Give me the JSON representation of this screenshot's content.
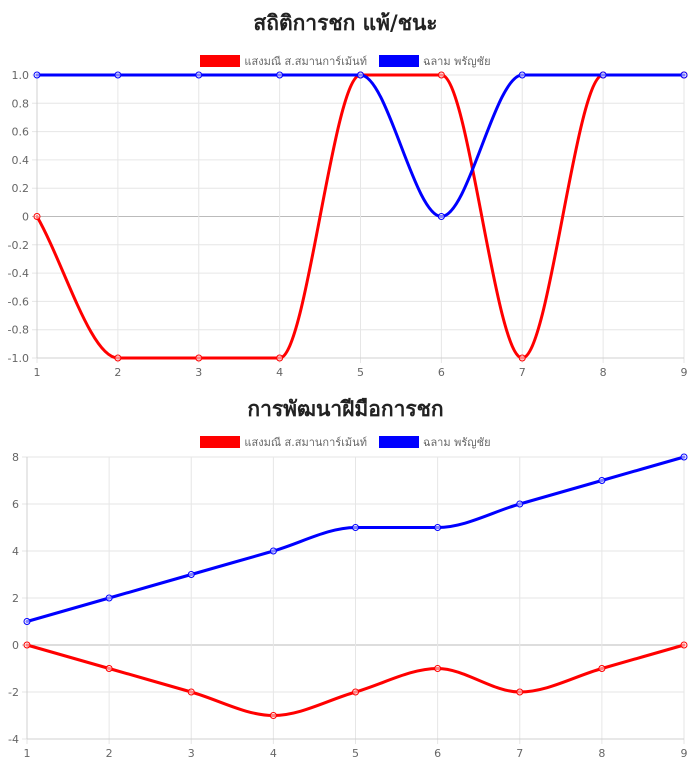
{
  "chart_data": [
    {
      "type": "line",
      "title": "สถิติการชก แพ้/ชนะ",
      "x": [
        1,
        2,
        3,
        4,
        5,
        6,
        7,
        8,
        9
      ],
      "ylim": [
        -1.0,
        1.0
      ],
      "yticks": [
        "1.0",
        "0.8",
        "0.6",
        "0.4",
        "0.2",
        "0",
        "-0.2",
        "-0.4",
        "-0.6",
        "-0.8",
        "-1.0"
      ],
      "grid": true,
      "legend_position": "top",
      "series": [
        {
          "name": "แสงมณี ส.สมานการ์เม้นท์",
          "color": "#ff0000",
          "values": [
            0,
            -1,
            -1,
            -1,
            1,
            1,
            -1,
            1,
            1
          ]
        },
        {
          "name": "ฉลาม พรัญชัย",
          "color": "#0000ff",
          "values": [
            1,
            1,
            1,
            1,
            1,
            0,
            1,
            1,
            1
          ]
        }
      ]
    },
    {
      "type": "line",
      "title": "การพัฒนาฝีมือการชก",
      "x": [
        1,
        2,
        3,
        4,
        5,
        6,
        7,
        8,
        9
      ],
      "ylim": [
        -4,
        8
      ],
      "yticks": [
        "8",
        "6",
        "4",
        "2",
        "0",
        "-2",
        "-4"
      ],
      "grid": true,
      "legend_position": "top",
      "series": [
        {
          "name": "แสงมณี ส.สมานการ์เม้นท์",
          "color": "#ff0000",
          "values": [
            0,
            -1,
            -2,
            -3,
            -2,
            -1,
            -2,
            -1,
            0
          ]
        },
        {
          "name": "ฉลาม พรัญชัย",
          "color": "#0000ff",
          "values": [
            1,
            2,
            3,
            4,
            5,
            5,
            6,
            7,
            8
          ]
        }
      ]
    }
  ]
}
